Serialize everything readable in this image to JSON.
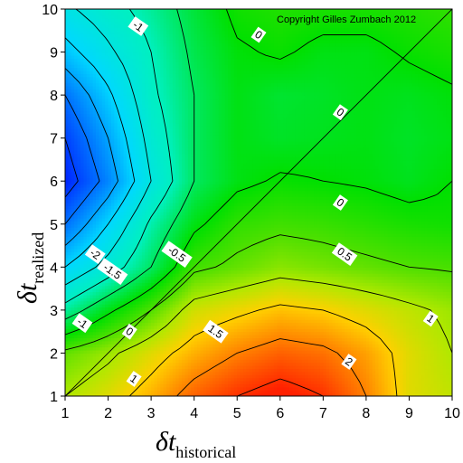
{
  "chart_data": {
    "type": "heatmap",
    "subtype": "filled-contour",
    "copyright": "Copyright Gilles Zumbach 2012",
    "xlabel": {
      "main": "δt",
      "sub": "historical"
    },
    "ylabel": {
      "main": "δt",
      "sub": "realized"
    },
    "xlim": [
      1,
      10
    ],
    "ylim": [
      1,
      10
    ],
    "x_ticks": [
      "1",
      "2",
      "3",
      "4",
      "5",
      "6",
      "7",
      "8",
      "9",
      "10"
    ],
    "y_ticks": [
      "1",
      "2",
      "3",
      "4",
      "5",
      "6",
      "7",
      "8",
      "9",
      "10"
    ],
    "grid": false,
    "legend": "none",
    "diagonal_line": true,
    "color_scale": {
      "min": -4,
      "max": 3,
      "stops": [
        {
          "value": -4.0,
          "color": "#0010ff"
        },
        {
          "value": -3.0,
          "color": "#0070ff"
        },
        {
          "value": -2.0,
          "color": "#00d8ff"
        },
        {
          "value": -1.0,
          "color": "#00f0c0"
        },
        {
          "value": 0.0,
          "color": "#00e000"
        },
        {
          "value": 0.5,
          "color": "#50e000"
        },
        {
          "value": 1.0,
          "color": "#b0e800"
        },
        {
          "value": 1.5,
          "color": "#ffd000"
        },
        {
          "value": 2.0,
          "color": "#ff8000"
        },
        {
          "value": 2.6,
          "color": "#ff2000"
        }
      ]
    },
    "contour_levels": [
      -3.5,
      -3,
      -2.5,
      -2,
      -1.5,
      -1,
      -0.5,
      0,
      0.5,
      1,
      1.5,
      2,
      2.5
    ],
    "contour_labels": [
      {
        "text": "-1",
        "x": 2.7,
        "y": 9.6
      },
      {
        "text": "0",
        "x": 5.5,
        "y": 9.4
      },
      {
        "text": "0",
        "x": 7.4,
        "y": 7.6
      },
      {
        "text": "0",
        "x": 7.4,
        "y": 5.5
      },
      {
        "text": "0.5",
        "x": 7.5,
        "y": 4.3
      },
      {
        "text": "-0.5",
        "x": 3.6,
        "y": 4.3
      },
      {
        "text": "-2",
        "x": 1.7,
        "y": 4.3
      },
      {
        "text": "-1.5",
        "x": 2.1,
        "y": 3.9
      },
      {
        "text": "-1",
        "x": 1.4,
        "y": 2.7
      },
      {
        "text": "0",
        "x": 2.5,
        "y": 2.5
      },
      {
        "text": "1.5",
        "x": 4.5,
        "y": 2.5
      },
      {
        "text": "1",
        "x": 2.6,
        "y": 1.4
      },
      {
        "text": "1",
        "x": 9.5,
        "y": 2.8
      },
      {
        "text": "2",
        "x": 7.6,
        "y": 1.8
      }
    ],
    "x": [
      1,
      2,
      3,
      4,
      5,
      6,
      7,
      8,
      9,
      10
    ],
    "y": [
      1,
      2,
      3,
      4,
      5,
      6,
      7,
      8,
      9,
      10
    ],
    "z": [
      [
        1.0,
        1.3,
        1.7,
        2.2,
        2.5,
        2.7,
        2.5,
        2.0,
        1.3,
        1.1
      ],
      [
        0.6,
        0.9,
        1.3,
        1.7,
        2.0,
        2.2,
        2.1,
        1.8,
        1.3,
        1.0
      ],
      [
        -0.8,
        -0.1,
        0.5,
        1.2,
        1.4,
        1.6,
        1.5,
        1.3,
        1.1,
        0.9
      ],
      [
        -2.0,
        -1.3,
        -0.5,
        0.4,
        0.6,
        0.8,
        0.7,
        0.6,
        0.5,
        0.45
      ],
      [
        -3.0,
        -2.0,
        -0.9,
        -0.1,
        0.3,
        0.4,
        0.35,
        0.25,
        0.15,
        0.1
      ],
      [
        -3.8,
        -2.8,
        -1.5,
        -0.5,
        -0.1,
        0.05,
        0.0,
        -0.05,
        -0.15,
        0.0
      ],
      [
        -3.5,
        -2.5,
        -1.3,
        -0.5,
        -0.1,
        -0.2,
        -0.15,
        -0.1,
        -0.2,
        -0.1
      ],
      [
        -3.0,
        -2.1,
        -1.1,
        -0.5,
        -0.1,
        -0.25,
        -0.2,
        -0.1,
        -0.15,
        -0.05
      ],
      [
        -2.2,
        -1.6,
        -1.0,
        -0.4,
        -0.05,
        0.05,
        -0.1,
        -0.1,
        0.05,
        0.15
      ],
      [
        -1.6,
        -1.2,
        -0.8,
        -0.3,
        0.1,
        0.2,
        0.15,
        0.15,
        0.2,
        0.3
      ]
    ]
  }
}
